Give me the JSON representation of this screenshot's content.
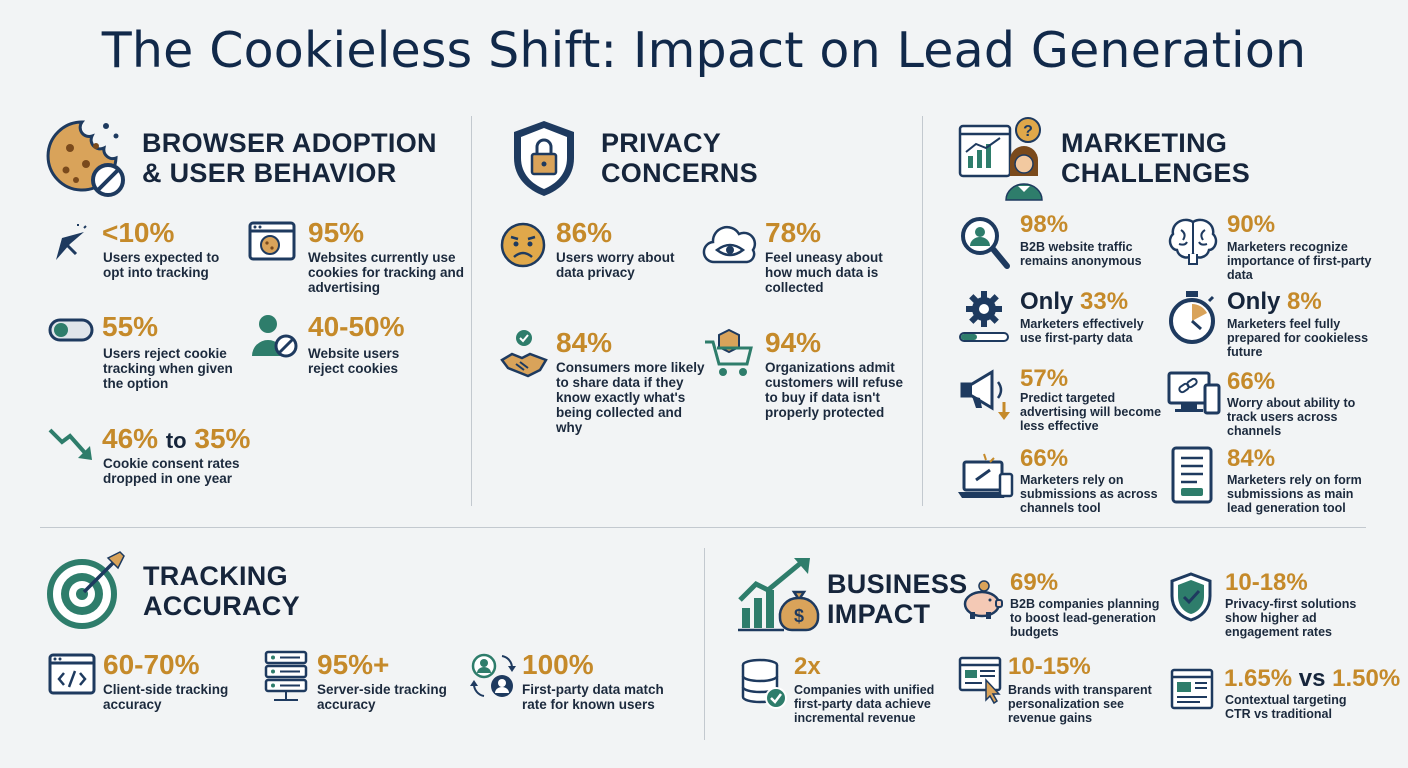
{
  "title": "The Cookieless Shift: Impact on Lead Generation",
  "colors": {
    "navy": "#1e3a5f",
    "teal": "#2e7d6b",
    "gold": "#c58a2a",
    "background": "#f2f4f5"
  },
  "browser": {
    "heading_line1": "BROWSER ADOPTION",
    "heading_line2": "& USER BEHAVIOR",
    "icon": "cookie-blocked-icon",
    "stats": [
      {
        "icon": "cursor-click-icon",
        "value": "<10%",
        "desc": "Users expected to opt into tracking"
      },
      {
        "icon": "browser-cookie-icon",
        "value": "95%",
        "desc": "Websites currently use cookies for tracking and advertising"
      },
      {
        "icon": "toggle-off-icon",
        "value": "55%",
        "desc": "Users reject cookie tracking when given the option"
      },
      {
        "icon": "user-blocked-icon",
        "value": "40-50%",
        "desc": "Website users reject cookies"
      }
    ],
    "decline": {
      "icon": "trend-down-icon",
      "from": "46%",
      "to_word": "to",
      "to": "35%",
      "desc": "Cookie consent rates dropped in one year"
    }
  },
  "privacy": {
    "heading_line1": "PRIVACY",
    "heading_line2": "CONCERNS",
    "icon": "shield-lock-icon",
    "stats": [
      {
        "icon": "worried-face-icon",
        "value": "86%",
        "desc": "Users worry about data privacy"
      },
      {
        "icon": "cloud-eye-icon",
        "value": "78%",
        "desc": "Feel uneasy about how much data is collected"
      },
      {
        "icon": "handshake-icon",
        "value": "84%",
        "desc": "Consumers more likely to share data if they know exactly what's being collected and why"
      },
      {
        "icon": "shopping-cart-icon",
        "value": "94%",
        "desc": "Organizations admit customers will refuse to buy if data isn't properly protected"
      }
    ]
  },
  "marketing": {
    "heading_line1": "MARKETING",
    "heading_line2": "CHALLENGES",
    "icon": "marketer-question-icon",
    "stats": [
      {
        "icon": "magnifier-user-icon",
        "value": "98%",
        "desc": "B2B website traffic remains anonymous"
      },
      {
        "icon": "brain-icon",
        "value": "90%",
        "desc": "Marketers recognize importance of first-party data"
      },
      {
        "icon": "gear-progress-icon",
        "value_prefix": "Only",
        "value": "33%",
        "desc": "Marketers effectively use first-party data"
      },
      {
        "icon": "stopwatch-icon",
        "value_prefix": "Only",
        "value": "8%",
        "desc": "Marketers feel fully prepared for cookieless future"
      },
      {
        "icon": "megaphone-down-icon",
        "value": "57%",
        "desc": "Predict targeted advertising will become less effective"
      },
      {
        "icon": "devices-link-icon",
        "value": "66%",
        "desc": "Worry about ability to track users across channels"
      },
      {
        "icon": "laptop-link-icon",
        "value": "66%",
        "desc": "Marketers rely on submissions as across channels tool"
      },
      {
        "icon": "form-document-icon",
        "value": "84%",
        "desc": "Marketers rely on form submissions as main lead generation tool"
      }
    ]
  },
  "tracking": {
    "heading_line1": "TRACKING",
    "heading_line2": "ACCURACY",
    "icon": "target-arrow-icon",
    "stats": [
      {
        "icon": "code-window-icon",
        "value": "60-70%",
        "desc": "Client-side tracking accuracy"
      },
      {
        "icon": "server-stack-icon",
        "value": "95%+",
        "desc": "Server-side tracking accuracy"
      },
      {
        "icon": "users-sync-icon",
        "value": "100%",
        "desc": "First-party data match rate for known users"
      }
    ]
  },
  "business": {
    "heading_line1": "BUSINESS",
    "heading_line2": "IMPACT",
    "icon": "growth-money-icon",
    "stats": [
      {
        "icon": "piggy-bank-icon",
        "value": "69%",
        "desc": "B2B companies planning to boost lead-generation budgets"
      },
      {
        "icon": "shield-check-icon",
        "value": "10-18%",
        "desc": "Privacy-first solutions show higher ad engagement rates"
      },
      {
        "icon": "database-check-icon",
        "value": "2x",
        "desc": "Companies with unified first-party data achieve incremental revenue"
      },
      {
        "icon": "web-click-icon",
        "value": "10-15%",
        "desc": "Brands with transparent personalization see revenue gains"
      },
      {
        "icon": "web-layout-icon",
        "value": "1.65%",
        "vs_word": "vs",
        "value2": "1.50%",
        "desc": "Contextual targeting CTR vs traditional"
      }
    ]
  }
}
